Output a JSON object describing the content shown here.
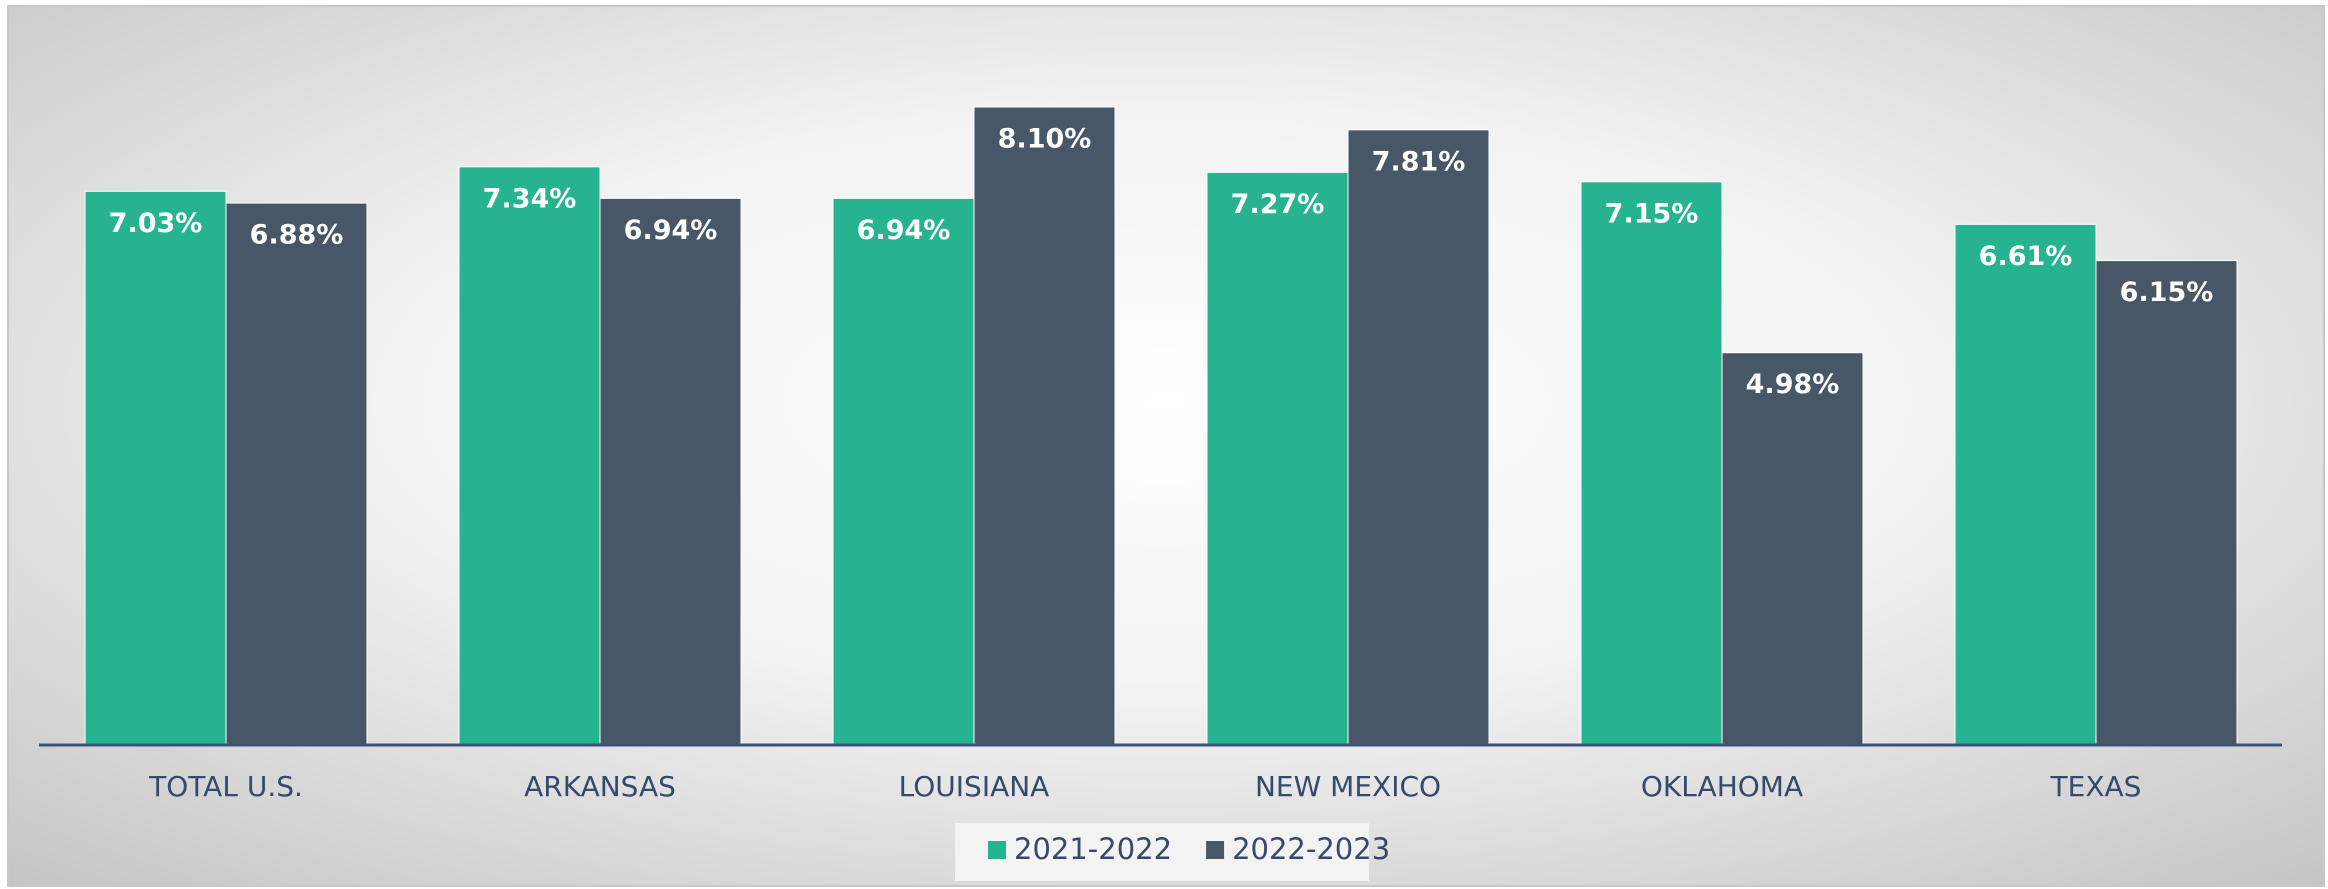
{
  "chart_data": {
    "type": "bar",
    "categories": [
      "TOTAL U.S.",
      "ARKANSAS",
      "LOUISIANA",
      "NEW MEXICO",
      "OKLAHOMA",
      "TEXAS"
    ],
    "series": [
      {
        "name": "2021-2022",
        "color": "#26b38f",
        "values": [
          7.03,
          7.34,
          6.94,
          7.27,
          7.15,
          6.61
        ],
        "value_labels": [
          "7.03%",
          "7.34%",
          "6.94%",
          "7.27%",
          "7.15%",
          "6.61%"
        ]
      },
      {
        "name": "2022-2023",
        "color": "#475768",
        "values": [
          6.88,
          6.94,
          8.1,
          7.81,
          4.98,
          6.15
        ],
        "value_labels": [
          "6.88%",
          "6.94%",
          "8.10%",
          "7.81%",
          "4.98%",
          "6.15%"
        ]
      }
    ],
    "legend": "bottom"
  }
}
